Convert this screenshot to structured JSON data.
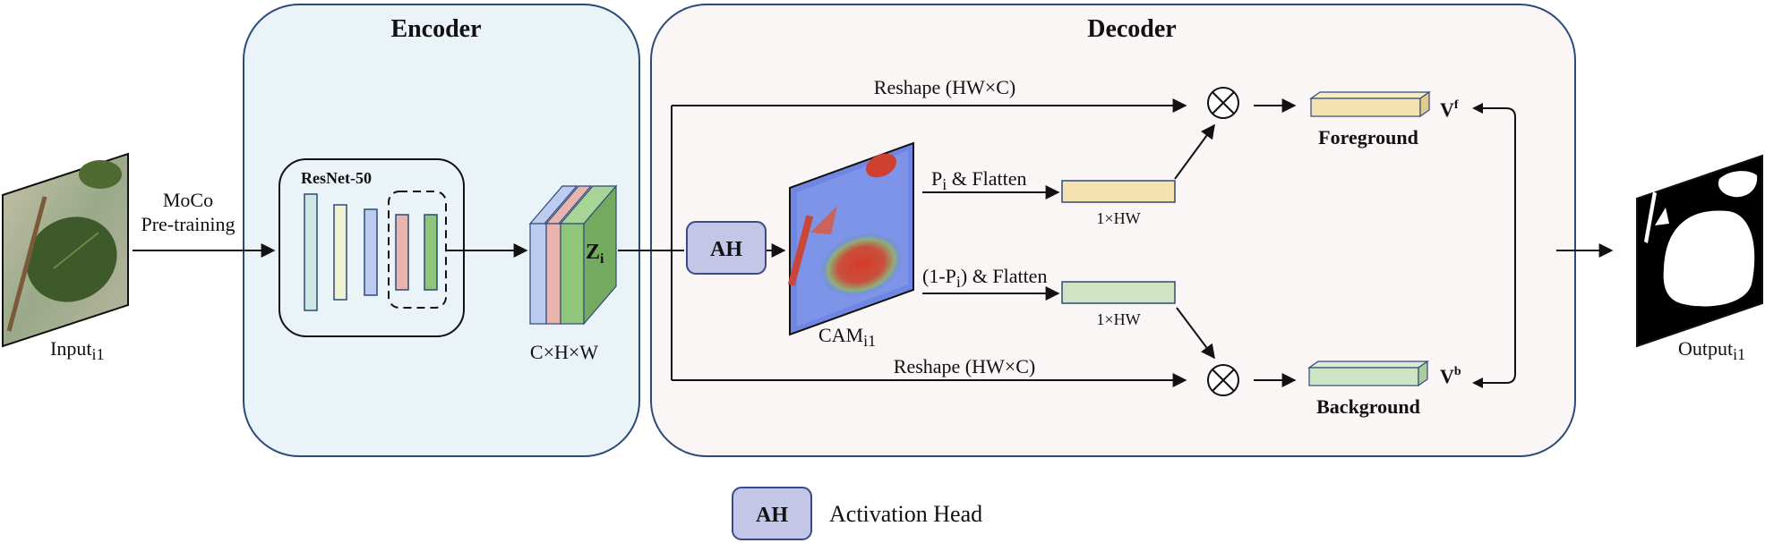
{
  "panels": {
    "encoder_title": "Encoder",
    "decoder_title": "Decoder"
  },
  "input": {
    "base": "Input",
    "sub": "i1"
  },
  "output": {
    "base": "Output",
    "sub": "i1"
  },
  "pretrain": {
    "line1": "MoCo",
    "line2": "Pre-training"
  },
  "resnet": {
    "label": "ResNet-50"
  },
  "feature": {
    "symbol": "Z",
    "sub": "i",
    "dims": "C×H×W"
  },
  "ah": {
    "label": "AH"
  },
  "cam": {
    "base": "CAM",
    "sub": "i1"
  },
  "paths": {
    "reshape_top": "Reshape (HW×C)",
    "reshape_bottom": "Reshape (HW×C)",
    "pi_base": "P",
    "pi_sub": "i",
    "pi_rest": " & Flatten",
    "neg_pre": "(1-P",
    "neg_sub": "i",
    "neg_rest": ") & Flatten",
    "dim_fg": "1×HW",
    "dim_bg": "1×HW"
  },
  "vectors": {
    "fg_symbol": "V",
    "fg_sup": "f",
    "bg_symbol": "V",
    "bg_sup": "b",
    "fg_label": "Foreground",
    "bg_label": "Background"
  },
  "legend": {
    "key": "AH",
    "text": "Activation Head"
  },
  "colors": {
    "encoder_bg": "#eaf3f8",
    "decoder_bg": "#faf6f5",
    "panel_border": "#2e4a7a",
    "ah_fill": "#c3c6e6",
    "ah_border": "#3a4a8a",
    "fg_bar": "#f4e3b1",
    "bg_bar": "#cfe4c3",
    "layer_teal": "#cde8e4",
    "layer_cream": "#eef2d0",
    "layer_blue": "#bccbee",
    "layer_pink": "#e9b3ae",
    "layer_green": "#8fc67b"
  }
}
